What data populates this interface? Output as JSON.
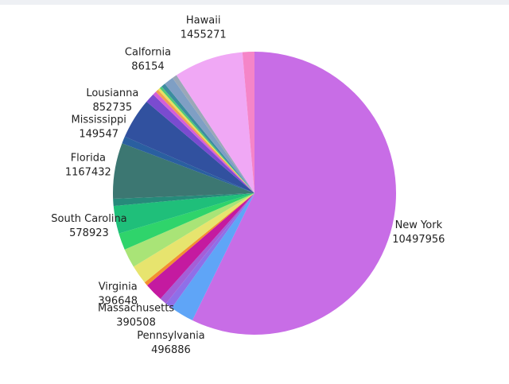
{
  "chart_data": {
    "type": "pie",
    "categories": [
      "New York",
      "Pennsylvania",
      null,
      null,
      "Massachusetts",
      null,
      "Virginia",
      null,
      null,
      "South Carolina",
      null,
      "Florida",
      "Mississippi",
      "Lousianna",
      null,
      null,
      null,
      null,
      null,
      "Calfornia",
      null,
      null,
      "Hawaii",
      null
    ],
    "values": [
      10497956,
      496886,
      150000,
      150000,
      390508,
      80000,
      396648,
      400000,
      350000,
      578923,
      150000,
      1167432,
      149547,
      852735,
      200000,
      80000,
      60000,
      50000,
      50000,
      86154,
      200000,
      100000,
      1455271,
      250000
    ],
    "colors": [
      "#c86de6",
      "#5fa5f7",
      "#8f6fe8",
      "#a35fd8",
      "#c41aa0",
      "#f3902f",
      "#e7e46e",
      "#a9e477",
      "#2fd46b",
      "#1fbf7a",
      "#268a7a",
      "#3c7772",
      "#2a5fa0",
      "#31519f",
      "#7a4bd0",
      "#d45fd8",
      "#f0a050",
      "#e8e060",
      "#50c878",
      "#3c8ca0",
      "#7f9fc4",
      "#9aa8b8",
      "#f0a8f5",
      "#f585c8"
    ]
  }
}
